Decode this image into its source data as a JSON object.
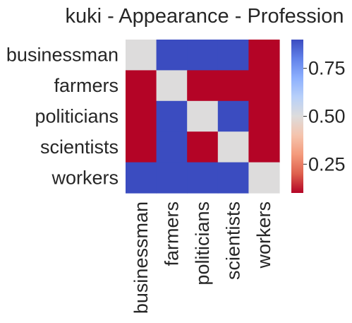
{
  "chart_data": {
    "type": "heatmap",
    "title": "kuki - Appearance - Profession",
    "xlabel": "",
    "ylabel": "",
    "rows": [
      "businessman",
      "farmers",
      "politicians",
      "scientists",
      "workers"
    ],
    "columns": [
      "businessman",
      "farmers",
      "politicians",
      "scientists",
      "workers"
    ],
    "values": [
      [
        0.5,
        0.9,
        0.9,
        0.9,
        0.1
      ],
      [
        0.1,
        0.5,
        0.1,
        0.1,
        0.1
      ],
      [
        0.1,
        0.9,
        0.5,
        0.9,
        0.1
      ],
      [
        0.1,
        0.9,
        0.1,
        0.5,
        0.1
      ],
      [
        0.9,
        0.9,
        0.9,
        0.9,
        0.5
      ]
    ],
    "colormap": "coolwarm",
    "vmin": 0.1,
    "vmax": 0.9,
    "colorbar": {
      "ticks": [
        0.25,
        0.5,
        0.75
      ],
      "tick_labels": [
        "0.25",
        "0.50",
        "0.75"
      ]
    },
    "grid": false,
    "colors": {
      "low": "#b40426",
      "mid": "#dddcdc",
      "high": "#3b4cc0",
      "text": "#262626"
    }
  }
}
